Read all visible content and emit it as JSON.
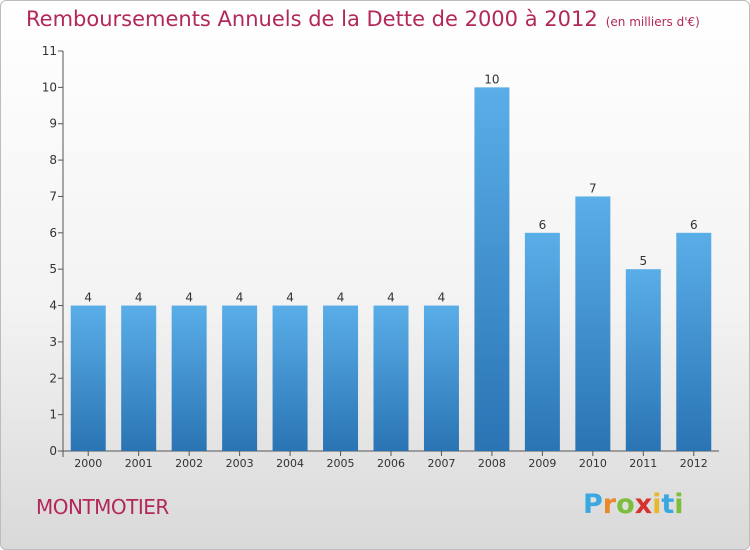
{
  "header": {
    "title": "Remboursements Annuels de la Dette de 2000 à 2012",
    "unit": "(en milliers d'€)"
  },
  "footer": {
    "town": "MONTMOTIER",
    "logo": [
      "P",
      "r",
      "o",
      "x",
      "i",
      "t",
      "i"
    ],
    "logo_colors": [
      "#3aa8e0",
      "#e8882a",
      "#7cbd3b",
      "#d6322e",
      "#e8b82a",
      "#3aa8e0",
      "#7cbd3b"
    ]
  },
  "chart_data": {
    "type": "bar",
    "title": "Remboursements Annuels de la Dette de 2000 à 2012",
    "categories": [
      "2000",
      "2001",
      "2002",
      "2003",
      "2004",
      "2005",
      "2006",
      "2007",
      "2008",
      "2009",
      "2010",
      "2011",
      "2012"
    ],
    "values": [
      4,
      4,
      4,
      4,
      4,
      4,
      4,
      4,
      10,
      6,
      7,
      5,
      6
    ],
    "ylim": [
      0,
      11
    ],
    "yticks": [
      0,
      1,
      2,
      3,
      4,
      5,
      6,
      7,
      8,
      9,
      10,
      11
    ],
    "grid": false,
    "bar_color_top": "#5aaee8",
    "bar_color_bottom": "#2a74b4"
  }
}
